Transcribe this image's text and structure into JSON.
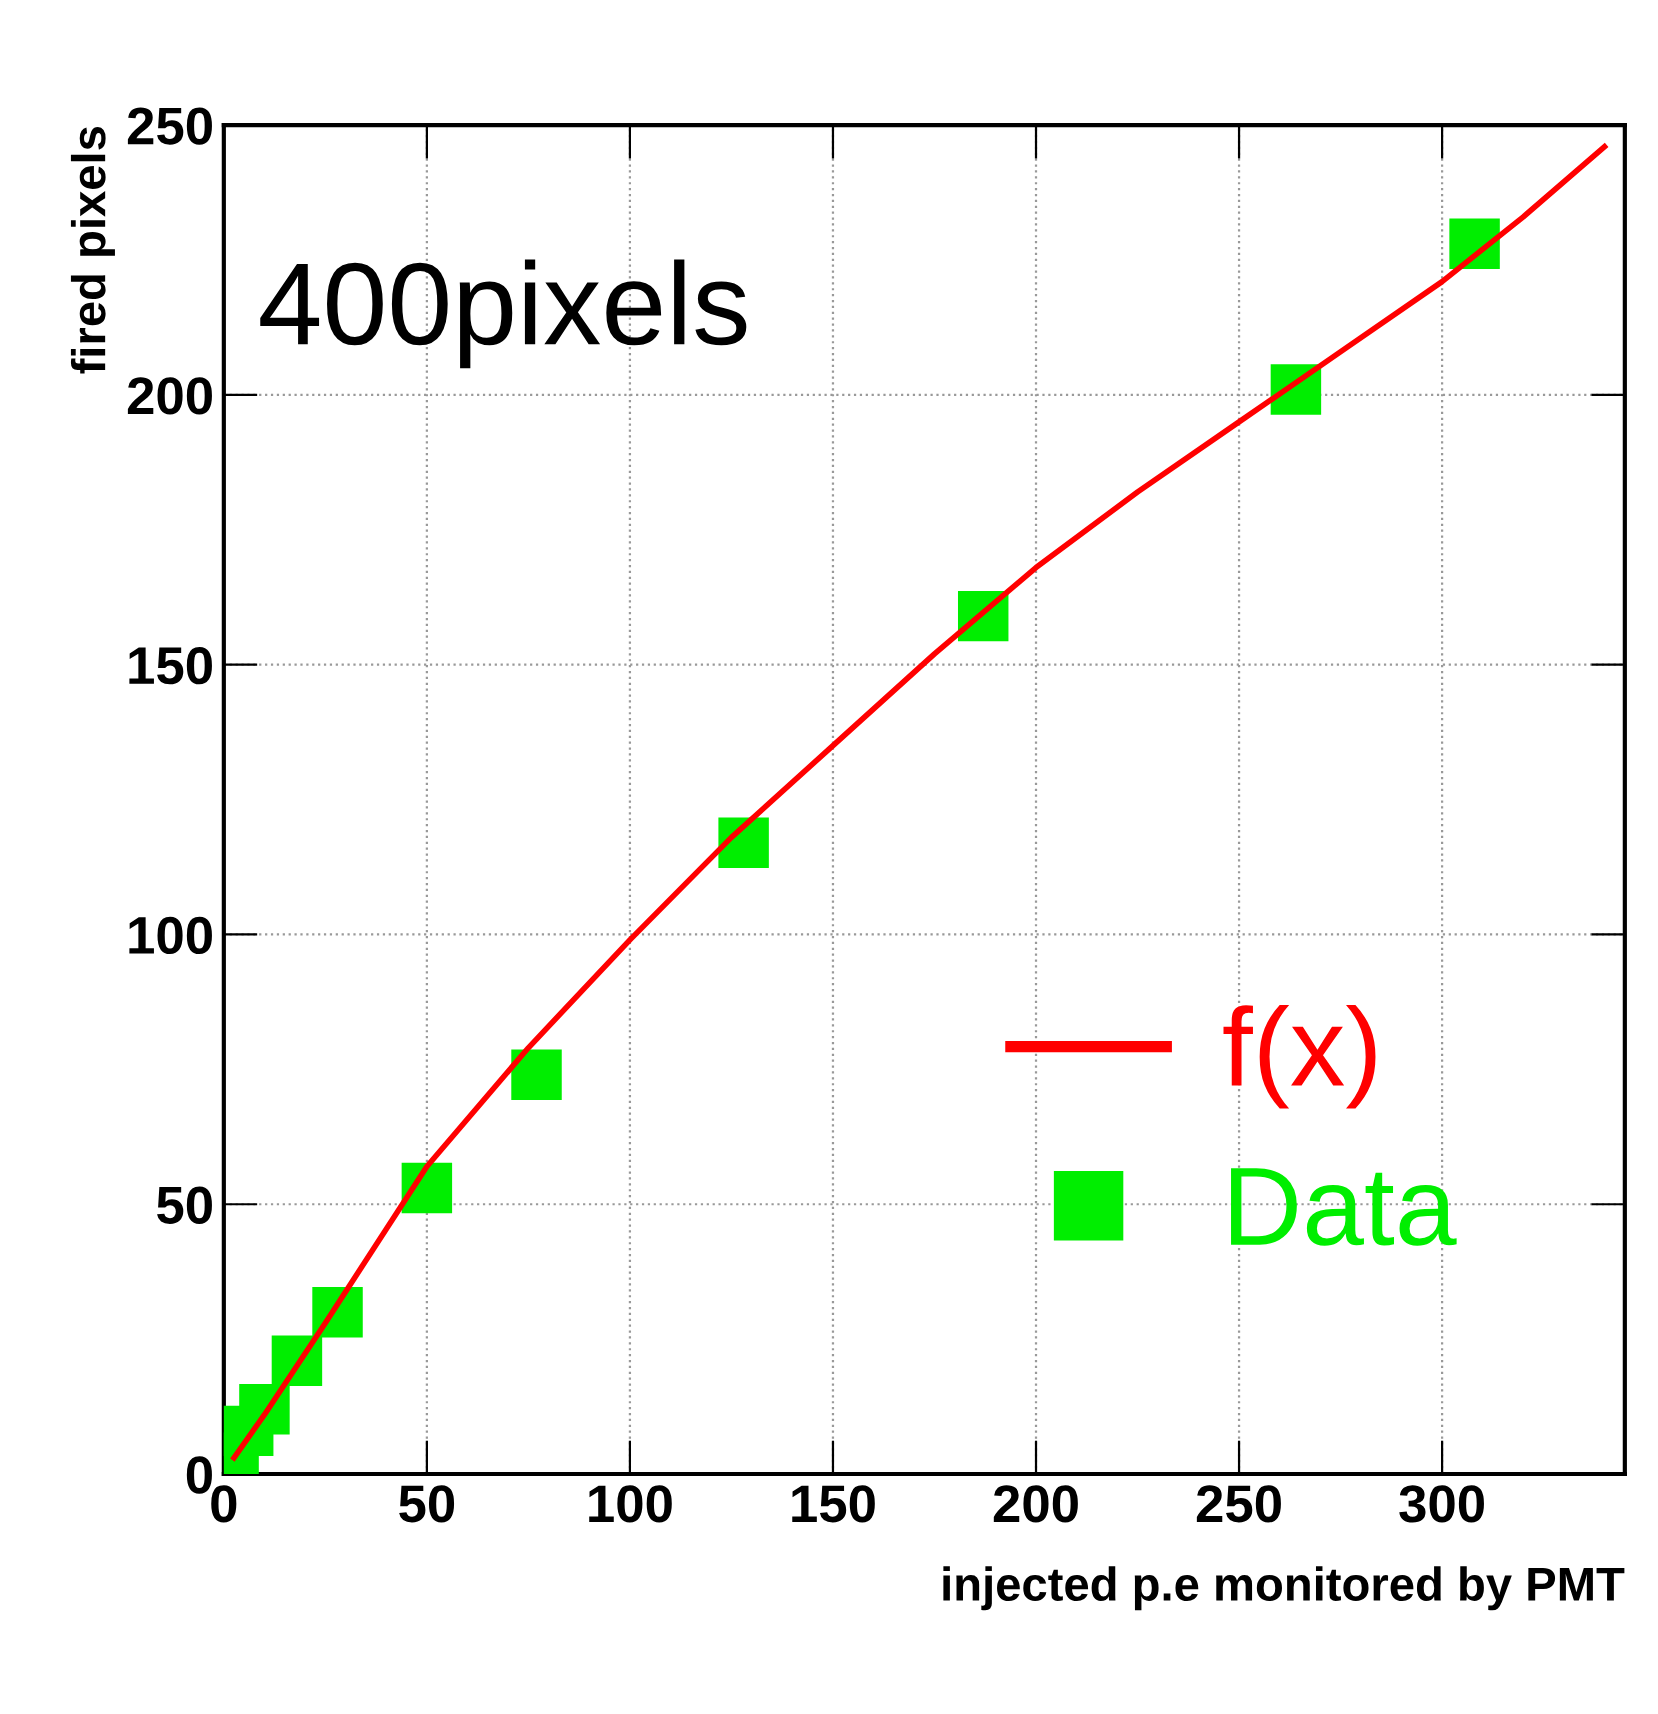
{
  "chart_data": {
    "type": "scatter",
    "xlabel": "injected p.e monitored by PMT",
    "ylabel": "fired pixels",
    "annotations": [
      "400pixels"
    ],
    "series": [
      {
        "name": "f(x)",
        "type": "line",
        "color": "#ff0000",
        "marker": "none",
        "x": [
          2.5,
          10,
          25,
          50,
          75,
          100,
          125,
          150,
          175,
          200,
          225,
          250,
          275,
          300,
          320,
          340
        ],
        "values": [
          3,
          11,
          28,
          57,
          79,
          99,
          118,
          135,
          152,
          168,
          182,
          195,
          208,
          221,
          233,
          246
        ]
      },
      {
        "name": "Data",
        "color": "#00ee00",
        "marker": "square",
        "x": [
          2.4,
          6,
          10,
          18,
          28,
          50,
          77,
          128,
          187,
          264,
          308
        ],
        "values": [
          3,
          8,
          12,
          21,
          30,
          53,
          74,
          117,
          159,
          201,
          228
        ]
      }
    ],
    "xlim": [
      0,
      345
    ],
    "ylim": [
      0,
      250
    ],
    "xticks": [
      0,
      50,
      100,
      150,
      200,
      250,
      300
    ],
    "yticks": [
      0,
      50,
      100,
      150,
      200,
      250
    ],
    "grid": true,
    "legend": "bottom right"
  }
}
